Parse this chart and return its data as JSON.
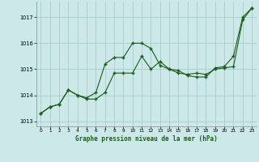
{
  "title": "Graphe pression niveau de la mer (hPa)",
  "background_color": "#cce8e8",
  "grid_color": "#aacccc",
  "line_color": "#1a5c1a",
  "xlim": [
    -0.5,
    23.5
  ],
  "ylim": [
    1012.8,
    1017.6
  ],
  "yticks": [
    1013,
    1014,
    1015,
    1016,
    1017
  ],
  "xticks": [
    0,
    1,
    2,
    3,
    4,
    5,
    6,
    7,
    8,
    9,
    10,
    11,
    12,
    13,
    14,
    15,
    16,
    17,
    18,
    19,
    20,
    21,
    22,
    23
  ],
  "series1_x": [
    0,
    1,
    2,
    3,
    4,
    5,
    6,
    7,
    8,
    9,
    10,
    11,
    12,
    13,
    14,
    15,
    16,
    17,
    18,
    19,
    20,
    21,
    22,
    23
  ],
  "series1_y": [
    1013.3,
    1013.55,
    1013.65,
    1014.2,
    1014.0,
    1013.9,
    1014.1,
    1015.2,
    1015.45,
    1015.45,
    1016.0,
    1016.0,
    1015.8,
    1015.15,
    1015.0,
    1014.95,
    1014.75,
    1014.7,
    1014.7,
    1015.05,
    1015.1,
    1015.5,
    1017.0,
    1017.35
  ],
  "series2_x": [
    0,
    1,
    2,
    3,
    4,
    5,
    6,
    7,
    8,
    9,
    10,
    11,
    12,
    13,
    14,
    15,
    16,
    17,
    18,
    19,
    20,
    21,
    22,
    23
  ],
  "series2_y": [
    1013.3,
    1013.55,
    1013.65,
    1014.2,
    1014.0,
    1013.85,
    1013.85,
    1014.1,
    1014.85,
    1014.85,
    1014.85,
    1015.5,
    1015.0,
    1015.3,
    1015.0,
    1014.85,
    1014.8,
    1014.85,
    1014.8,
    1015.0,
    1015.05,
    1015.1,
    1016.9,
    1017.35
  ]
}
